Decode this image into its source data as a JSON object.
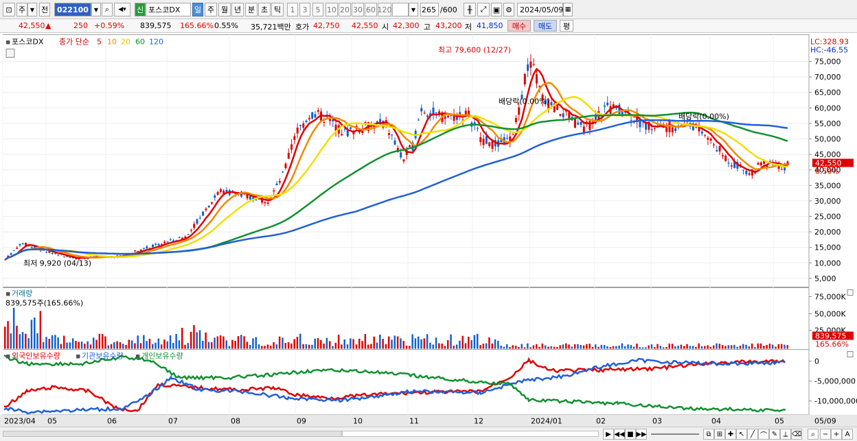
{
  "toolbar": {
    "market": "주",
    "type": "전",
    "code": "022100",
    "badge": "신",
    "name": "포스코DX",
    "periods": [
      "일",
      "주",
      "월",
      "년",
      "분",
      "초",
      "틱"
    ],
    "active_period": "일",
    "numbers": [
      "1",
      "3",
      "5",
      "10",
      "20",
      "30",
      "60",
      "120"
    ],
    "count": "265",
    "count_total": "/600",
    "date": "2024/05/09"
  },
  "quote": {
    "price": "42,550",
    "change_arrow": "▲",
    "change": "250",
    "change_pct": "+0.59%",
    "volume": "839,575",
    "turnover": "165.66%",
    "ratio": "0.55%",
    "amount": "35,721백만",
    "ask_label": "호가",
    "ask": "42,750",
    "bid": "42,550",
    "open_label": "시",
    "open": "42,300",
    "high_label": "고",
    "high": "43,200",
    "low_label": "저",
    "low": "41,850",
    "buy": "매수",
    "sell": "매도",
    "eval": "평"
  },
  "legend": {
    "name": "포스코DX",
    "ma_title": "종가 단순",
    "ma": [
      "5",
      "10",
      "20",
      "60",
      "120"
    ]
  },
  "colors": {
    "up": "#e00000",
    "down": "#1060d0",
    "ma5": "#e00000",
    "ma10": "#f08a00",
    "ma20": "#f0e000",
    "ma60": "#109030",
    "ma120": "#2060d8"
  },
  "lc": "LC:328.93",
  "hc": "HC:-46.55",
  "price_axis": [
    "75,000",
    "70,000",
    "65,000",
    "60,000",
    "55,000",
    "50,000",
    "45,000",
    "40,000",
    "35,000",
    "30,000",
    "25,000",
    "20,000",
    "15,000",
    "10,000",
    "5,000"
  ],
  "current_price_tag": "42,550",
  "current_pct_tag": "0.59%",
  "annotations": {
    "high": "최고 79,600 (12/27)",
    "low": "최저 9,920 (04/13)",
    "div1": "배당락(0.00%)",
    "div2": "배당락(0.00%)"
  },
  "volume_pane": {
    "title": "거래량",
    "value": "839,575주(165.66%)",
    "axis": [
      "75,000K",
      "50,000K",
      "25,000K"
    ],
    "tag": "839,575",
    "tag_pct": "165.66%"
  },
  "holding_pane": {
    "labels": [
      "외국인보유수량",
      "기관보유수량",
      "개인보유수량"
    ],
    "axis": [
      "0",
      "-5,000,000",
      "-10,000,000"
    ]
  },
  "x_axis": [
    "2023/04",
    "05",
    "06",
    "07",
    "08",
    "09",
    "10",
    "11",
    "12",
    "2024/01",
    "02",
    "03",
    "04",
    "05",
    "05/09"
  ]
}
